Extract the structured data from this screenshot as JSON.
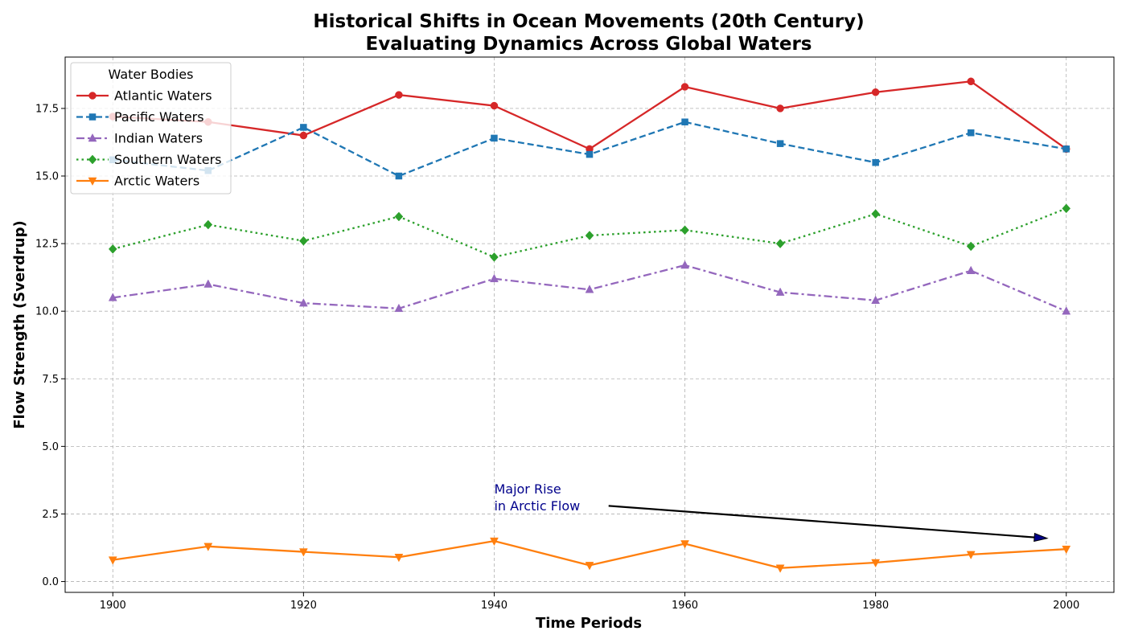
{
  "chart_data": {
    "type": "line",
    "title_line1": "Historical Shifts in Ocean Movements (20th Century)",
    "title_line2": "Evaluating Dynamics Across Global Waters",
    "xlabel": "Time Periods",
    "ylabel": "Flow Strength (Sverdrup)",
    "x": [
      1900,
      1910,
      1920,
      1930,
      1940,
      1950,
      1960,
      1970,
      1980,
      1990,
      2000
    ],
    "xlim": [
      1895,
      2005
    ],
    "ylim": [
      -0.4,
      19.4
    ],
    "xticks": [
      1900,
      1920,
      1940,
      1960,
      1980,
      2000
    ],
    "yticks": [
      0.0,
      2.5,
      5.0,
      7.5,
      10.0,
      12.5,
      15.0,
      17.5
    ],
    "ytick_labels": [
      "0.0",
      "2.5",
      "5.0",
      "7.5",
      "10.0",
      "12.5",
      "15.0",
      "17.5"
    ],
    "grid": true,
    "legend_title": "Water Bodies",
    "legend_position": "top-left",
    "series": [
      {
        "name": "Atlantic Waters",
        "color": "#d62728",
        "dash": "solid",
        "marker": "circle",
        "values": [
          17.2,
          17.0,
          16.5,
          18.0,
          17.6,
          16.0,
          18.3,
          17.5,
          18.1,
          18.5,
          16.0
        ]
      },
      {
        "name": "Pacific Waters",
        "color": "#1f77b4",
        "dash": "dashed",
        "marker": "square",
        "values": [
          15.6,
          15.2,
          16.8,
          15.0,
          16.4,
          15.8,
          17.0,
          16.2,
          15.5,
          16.6,
          16.0
        ]
      },
      {
        "name": "Indian Waters",
        "color": "#9467bd",
        "dash": "dashdot",
        "marker": "triangle-up",
        "values": [
          10.5,
          11.0,
          10.3,
          10.1,
          11.2,
          10.8,
          11.7,
          10.7,
          10.4,
          11.5,
          10.0
        ]
      },
      {
        "name": "Southern Waters",
        "color": "#2ca02c",
        "dash": "dotted",
        "marker": "diamond",
        "values": [
          12.3,
          13.2,
          12.6,
          13.5,
          12.0,
          12.8,
          13.0,
          12.5,
          13.6,
          12.4,
          13.8
        ]
      },
      {
        "name": "Arctic Waters",
        "color": "#ff7f0e",
        "dash": "solid",
        "marker": "triangle-down",
        "values": [
          0.8,
          1.3,
          1.1,
          0.9,
          1.5,
          0.6,
          1.4,
          0.5,
          0.7,
          1.0,
          1.2
        ]
      }
    ],
    "annotation": {
      "line1": "Major Rise",
      "line2": "in Arctic Flow",
      "color": "#00008b",
      "text_x": 1940,
      "text_y": 3.2,
      "arrow_from_x": 1952,
      "arrow_from_y": 2.8,
      "arrow_to_x": 1998,
      "arrow_to_y": 1.6
    }
  }
}
